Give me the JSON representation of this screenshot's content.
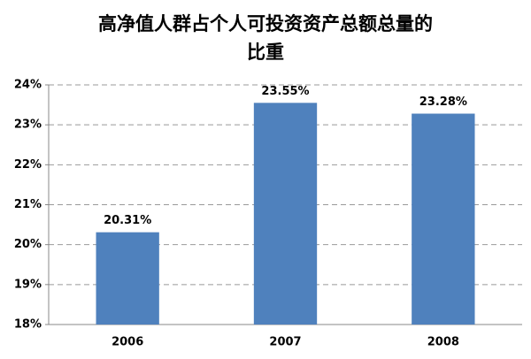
{
  "chart_data": {
    "type": "bar",
    "title": [
      "高净值人群占个人可投资资产总额总量的",
      "比重"
    ],
    "categories": [
      "2006",
      "2007",
      "2008"
    ],
    "values": [
      20.31,
      23.55,
      23.28
    ],
    "value_labels": [
      "20.31%",
      "23.55%",
      "23.28%"
    ],
    "color": "#4f81bd",
    "ylim": [
      18,
      24
    ],
    "yticks": [
      {
        "value": 18,
        "label": "18%"
      },
      {
        "value": 19,
        "label": "19%"
      },
      {
        "value": 20,
        "label": "20%"
      },
      {
        "value": 21,
        "label": "21%"
      },
      {
        "value": 22,
        "label": "22%"
      },
      {
        "value": 23,
        "label": "23%"
      },
      {
        "value": 24,
        "label": "24%"
      }
    ],
    "grid": true
  }
}
